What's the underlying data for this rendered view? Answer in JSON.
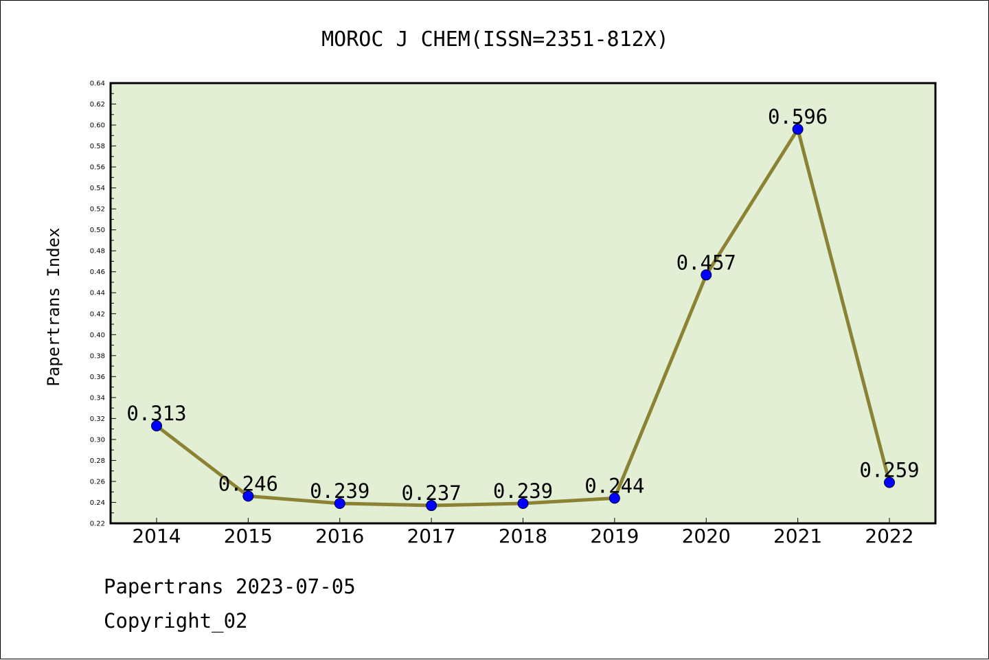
{
  "chart_data": {
    "type": "line",
    "title": "MOROC J CHEM(ISSN=2351-812X)",
    "xlabel": "",
    "ylabel": "Papertrans Index",
    "categories": [
      "2014",
      "2015",
      "2016",
      "2017",
      "2018",
      "2019",
      "2020",
      "2021",
      "2022"
    ],
    "series": [
      {
        "values": [
          0.313,
          0.246,
          0.239,
          0.237,
          0.239,
          0.244,
          0.457,
          0.596,
          0.259
        ]
      }
    ],
    "data_labels": [
      "0.313",
      "0.246",
      "0.239",
      "0.237",
      "0.239",
      "0.244",
      "0.457",
      "0.596",
      "0.259"
    ],
    "ylim": [
      0.22,
      0.64
    ],
    "yticks": [
      "0.22",
      "0.24",
      "0.26",
      "0.28",
      "0.30",
      "0.32",
      "0.34",
      "0.36",
      "0.38",
      "0.40",
      "0.42",
      "0.44",
      "0.46",
      "0.48",
      "0.50",
      "0.52",
      "0.54",
      "0.56",
      "0.58",
      "0.60",
      "0.62",
      "0.64"
    ],
    "grid": false,
    "colors": {
      "line": "#8b8234",
      "marker": "#0000ff",
      "plot_bg": "#e2efd5"
    }
  },
  "footer": {
    "line1": "Papertrans 2023-07-05",
    "line2": "Copyright_02"
  }
}
